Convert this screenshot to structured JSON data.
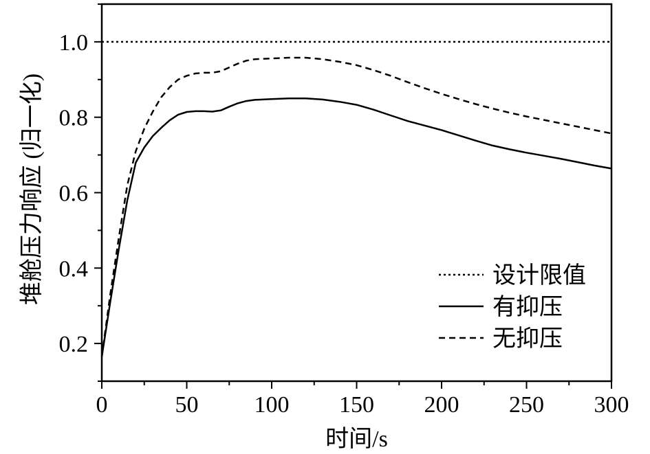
{
  "chart_data": {
    "type": "line",
    "title": "",
    "xlabel": "时间/s",
    "ylabel": "堆舱压力响应 (归一化)",
    "xlim": [
      0,
      300
    ],
    "ylim": [
      0.1,
      1.1
    ],
    "xticks": [
      0,
      50,
      100,
      150,
      200,
      250,
      300
    ],
    "xtick_labels": [
      "0",
      "50",
      "100",
      "150",
      "200",
      "250",
      "300"
    ],
    "yticks": [
      0.2,
      0.4,
      0.6,
      0.8,
      1.0
    ],
    "ytick_labels": [
      "0.2",
      "0.4",
      "0.6",
      "0.8",
      "1.0"
    ],
    "grid": false,
    "legend_position": "bottom-right",
    "series": [
      {
        "name": "设计限值",
        "style": "dotted",
        "x": [
          0,
          300
        ],
        "y": [
          1.0,
          1.0
        ]
      },
      {
        "name": "有抑压",
        "style": "solid",
        "x": [
          0,
          5,
          10,
          15,
          20,
          25,
          30,
          35,
          40,
          45,
          50,
          55,
          60,
          65,
          70,
          75,
          80,
          85,
          90,
          100,
          110,
          120,
          130,
          140,
          150,
          160,
          170,
          180,
          190,
          200,
          210,
          220,
          230,
          240,
          250,
          260,
          270,
          280,
          290,
          300
        ],
        "y": [
          0.165,
          0.31,
          0.45,
          0.58,
          0.68,
          0.72,
          0.75,
          0.772,
          0.792,
          0.807,
          0.814,
          0.816,
          0.816,
          0.815,
          0.818,
          0.828,
          0.837,
          0.843,
          0.846,
          0.848,
          0.85,
          0.85,
          0.847,
          0.841,
          0.833,
          0.82,
          0.805,
          0.79,
          0.778,
          0.766,
          0.752,
          0.738,
          0.725,
          0.715,
          0.706,
          0.698,
          0.69,
          0.681,
          0.672,
          0.664
        ]
      },
      {
        "name": "无抑压",
        "style": "dashed",
        "x": [
          0,
          5,
          10,
          15,
          20,
          25,
          30,
          35,
          40,
          45,
          50,
          55,
          60,
          65,
          70,
          75,
          80,
          85,
          90,
          100,
          110,
          120,
          130,
          140,
          150,
          160,
          170,
          180,
          190,
          200,
          210,
          220,
          230,
          240,
          250,
          260,
          270,
          280,
          290,
          300
        ],
        "y": [
          0.165,
          0.33,
          0.48,
          0.62,
          0.71,
          0.77,
          0.815,
          0.853,
          0.88,
          0.9,
          0.91,
          0.916,
          0.918,
          0.918,
          0.922,
          0.932,
          0.942,
          0.95,
          0.954,
          0.956,
          0.958,
          0.958,
          0.954,
          0.947,
          0.938,
          0.925,
          0.91,
          0.893,
          0.877,
          0.862,
          0.848,
          0.835,
          0.823,
          0.812,
          0.802,
          0.793,
          0.784,
          0.775,
          0.766,
          0.757
        ]
      }
    ]
  }
}
